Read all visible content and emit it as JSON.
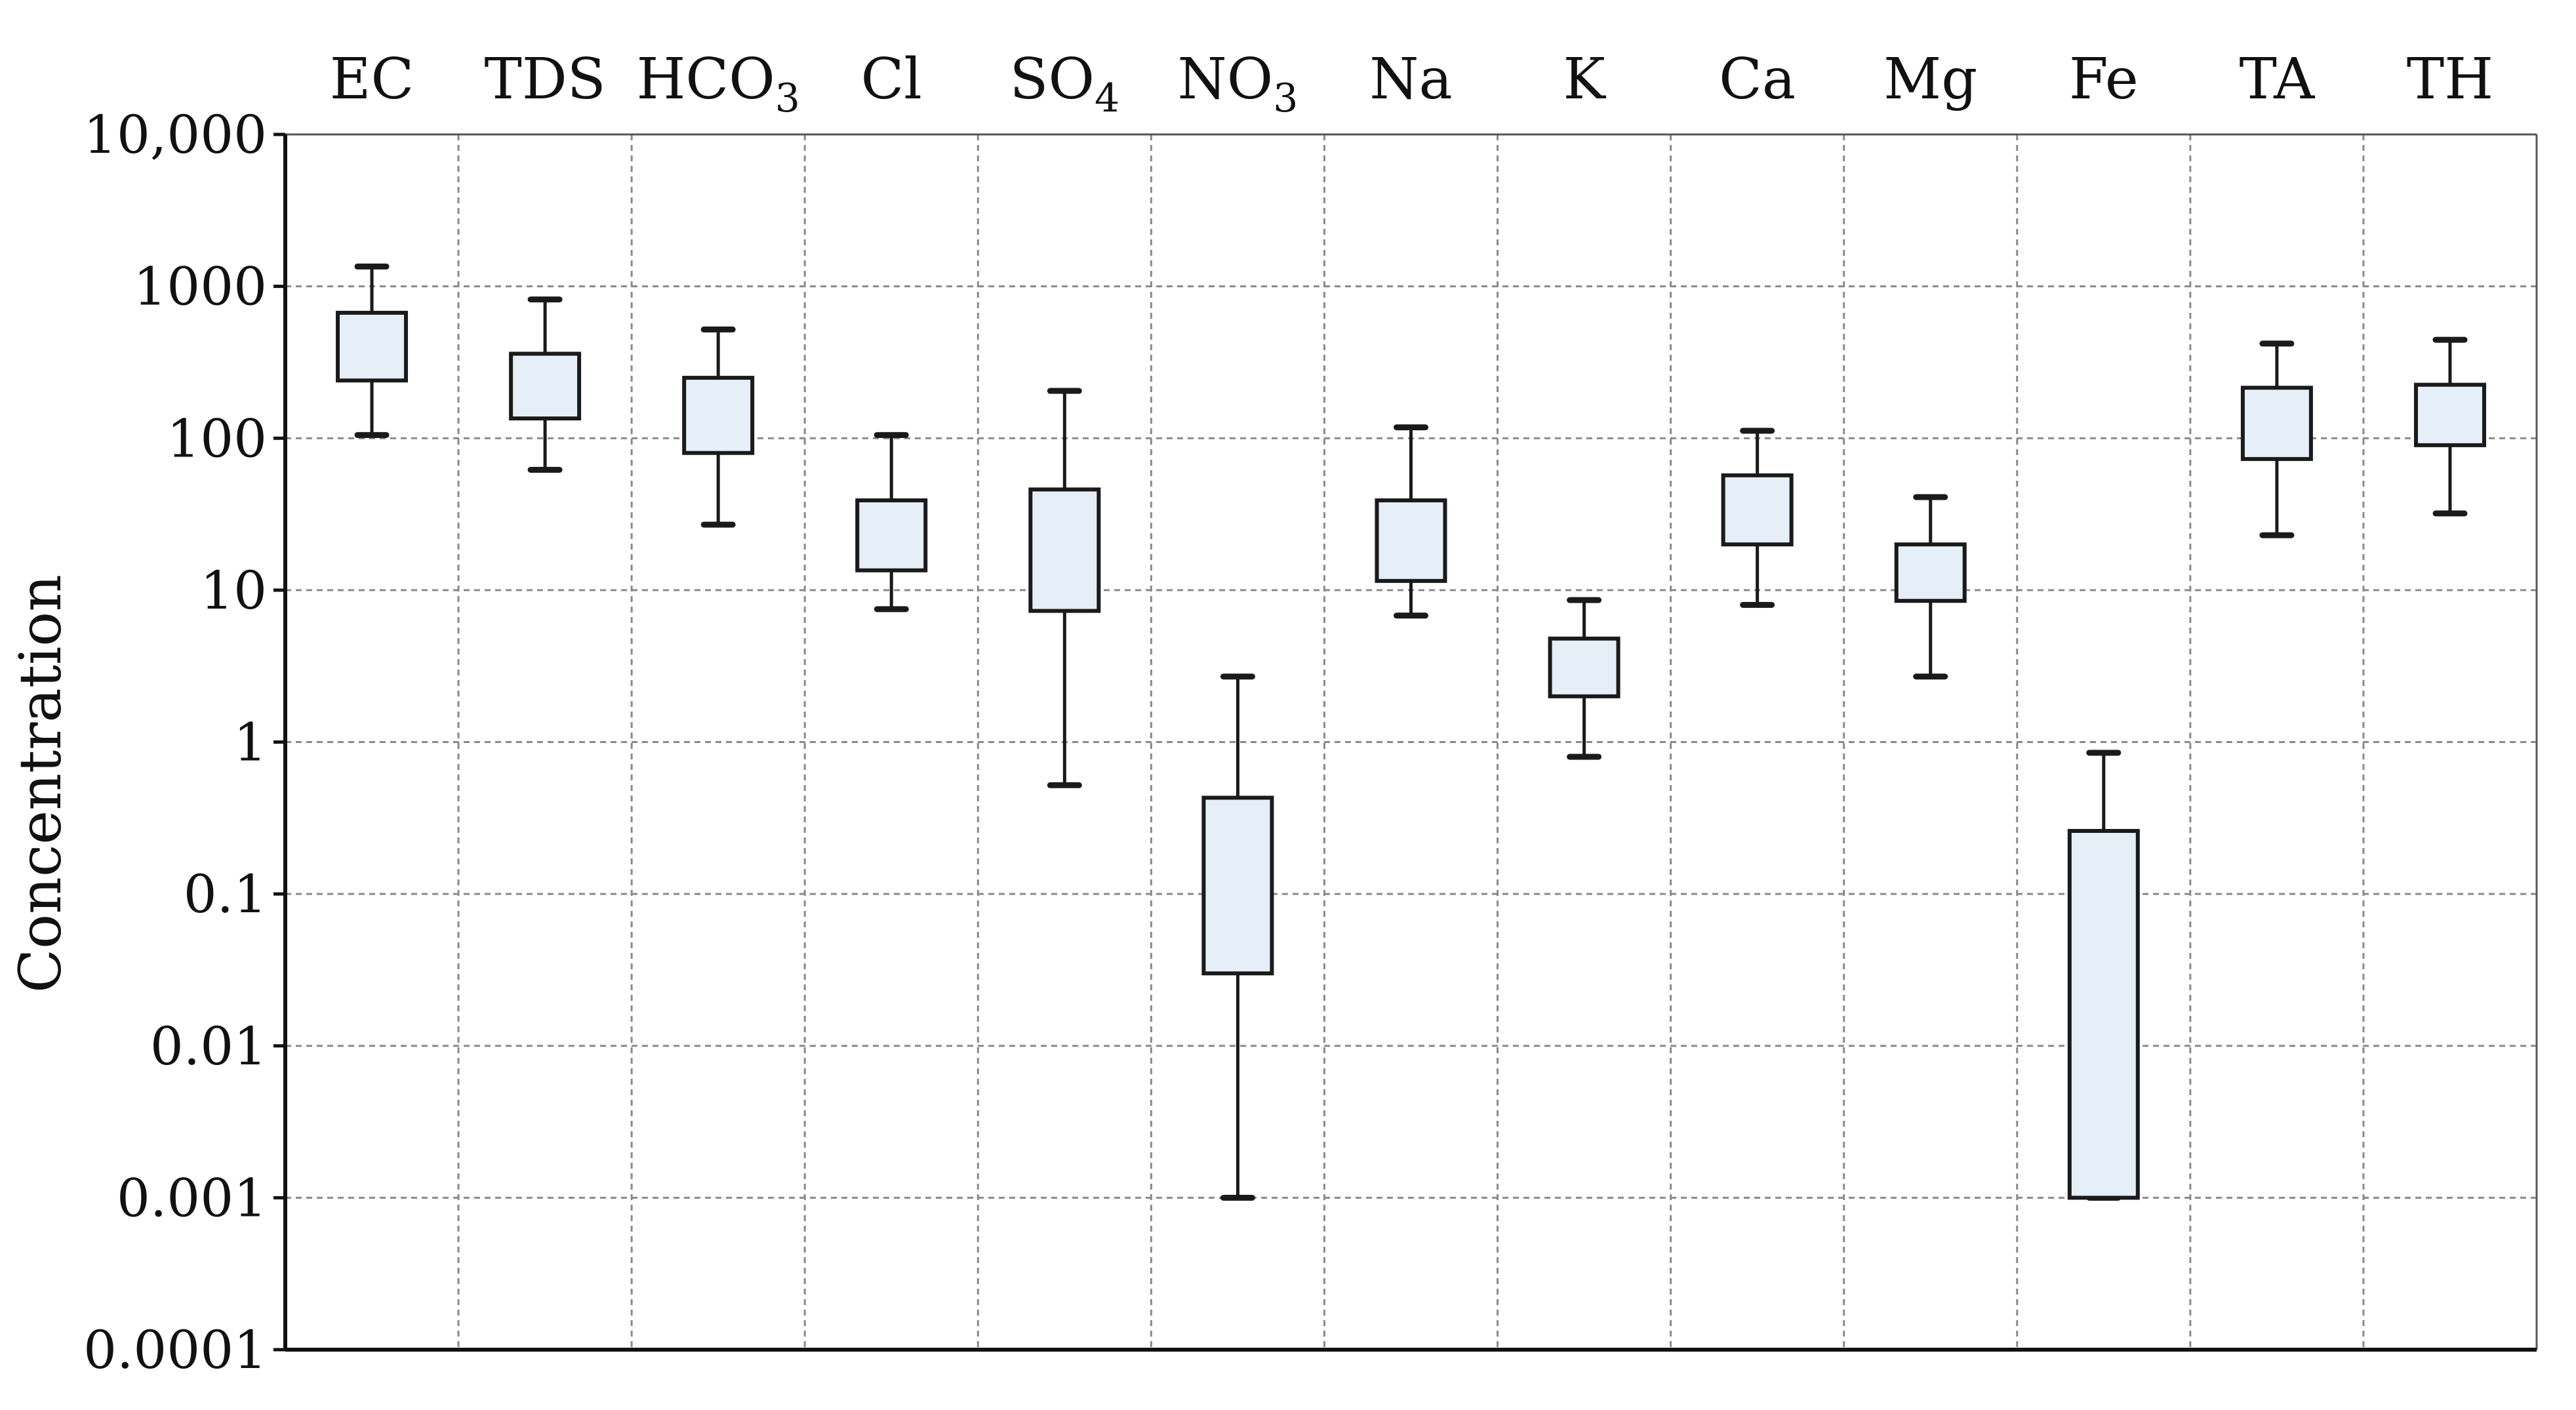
{
  "chart_data": {
    "type": "boxplot",
    "title": "",
    "xlabel": "",
    "ylabel": "Concentration",
    "yscale": "log",
    "ylim": [
      0.0001,
      10000
    ],
    "grid": true,
    "colors": {
      "box_fill": "#e6eef7",
      "stroke": "#1a1a1a",
      "grid": "#8a8a8a"
    },
    "categories": [
      {
        "base": "EC",
        "sub": ""
      },
      {
        "base": "TDS",
        "sub": ""
      },
      {
        "base": "HCO",
        "sub": "3"
      },
      {
        "base": "Cl",
        "sub": ""
      },
      {
        "base": "SO",
        "sub": "4"
      },
      {
        "base": "NO",
        "sub": "3"
      },
      {
        "base": "Na",
        "sub": ""
      },
      {
        "base": "K",
        "sub": ""
      },
      {
        "base": "Ca",
        "sub": ""
      },
      {
        "base": "Mg",
        "sub": ""
      },
      {
        "base": "Fe",
        "sub": ""
      },
      {
        "base": "TA",
        "sub": ""
      },
      {
        "base": "TH",
        "sub": ""
      }
    ],
    "ytick_labels": [
      "10,000",
      "1000",
      "100",
      "10",
      "1",
      "0.1",
      "0.01",
      "0.001",
      "0.0001"
    ],
    "boxes": [
      {
        "min": 105,
        "q1": 240,
        "q3": 670,
        "max": 1350
      },
      {
        "min": 62,
        "q1": 135,
        "q3": 360,
        "max": 820
      },
      {
        "min": 27,
        "q1": 80,
        "q3": 250,
        "max": 520
      },
      {
        "min": 7.5,
        "q1": 13.5,
        "q3": 39,
        "max": 105
      },
      {
        "min": 0.52,
        "q1": 7.3,
        "q3": 46,
        "max": 205
      },
      {
        "min": 0.001,
        "q1": 0.03,
        "q3": 0.43,
        "max": 2.7
      },
      {
        "min": 6.8,
        "q1": 11.5,
        "q3": 39,
        "max": 118
      },
      {
        "min": 0.8,
        "q1": 2,
        "q3": 4.8,
        "max": 8.6
      },
      {
        "min": 8,
        "q1": 20,
        "q3": 57,
        "max": 112
      },
      {
        "min": 2.7,
        "q1": 8.5,
        "q3": 20,
        "max": 41
      },
      {
        "min": 0.001,
        "q1": 0.001,
        "q3": 0.26,
        "max": 0.85
      },
      {
        "min": 23,
        "q1": 73,
        "q3": 215,
        "max": 420
      },
      {
        "min": 32,
        "q1": 90,
        "q3": 225,
        "max": 445
      }
    ]
  }
}
